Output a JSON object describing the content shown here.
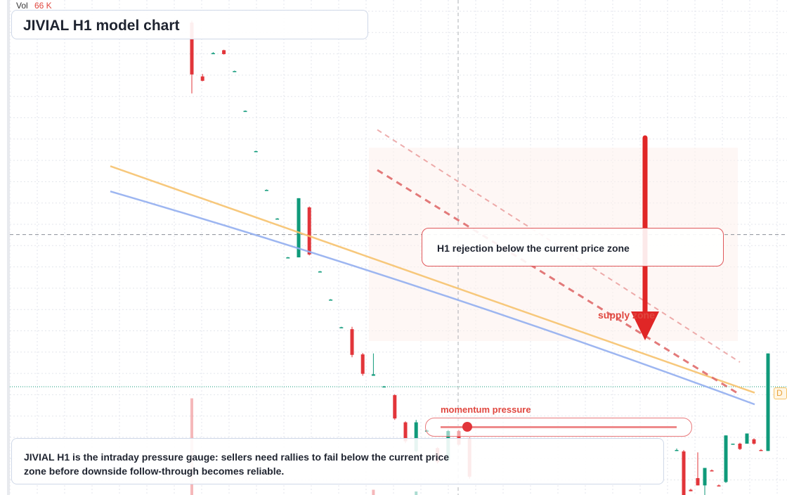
{
  "title": "JIVIAL H1 model chart",
  "volume": {
    "label": "Vol",
    "value": "66 K"
  },
  "callout": {
    "text": "H1 rejection below the current price zone"
  },
  "supply_zone": {
    "label": "supply zone"
  },
  "momentum": {
    "label": "momentum pressure",
    "level": 0.07
  },
  "note": {
    "text": "JIVIAL H1 is the intraday pressure gauge: sellers need rallies to fail below the current price zone before downside follow-through becomes reliable."
  },
  "badge": {
    "text": "D"
  },
  "colors": {
    "bullish": "#0f9a7a",
    "bearish": "#e2353a",
    "ma_fast": "#f6c26e",
    "ma_slow": "#92aef0",
    "trend_dashed": "#e06c6c",
    "arrow": "#e02626",
    "grid": "#e3e6ec"
  },
  "chart_data": {
    "type": "candlestick",
    "title": "JIVIAL H1 model chart",
    "y_range": [
      0,
      100
    ],
    "candles": [
      {
        "x": 0,
        "o": 96.8,
        "h": 97.2,
        "l": 82.2,
        "c": 86.1
      },
      {
        "x": 1,
        "o": 85.7,
        "h": 86.2,
        "l": 84.7,
        "c": 84.8
      },
      {
        "x": 2,
        "o": 90.5,
        "h": 90.7,
        "l": 90.4,
        "c": 90.5
      },
      {
        "x": 3,
        "o": 91.1,
        "h": 91.2,
        "l": 90.2,
        "c": 90.3
      },
      {
        "x": 4,
        "o": 86.8,
        "h": 86.9,
        "l": 86.8,
        "c": 86.8
      },
      {
        "x": 5,
        "o": 78.6,
        "h": 78.7,
        "l": 78.6,
        "c": 78.6
      },
      {
        "x": 6,
        "o": 70.3,
        "h": 70.4,
        "l": 70.3,
        "c": 70.3
      },
      {
        "x": 7,
        "o": 62.3,
        "h": 62.4,
        "l": 62.3,
        "c": 62.3
      },
      {
        "x": 8,
        "o": 56.4,
        "h": 56.5,
        "l": 56.4,
        "c": 56.4
      },
      {
        "x": 9,
        "o": 48.4,
        "h": 48.5,
        "l": 48.4,
        "c": 48.4
      },
      {
        "x": 10,
        "o": 48.4,
        "h": 60.6,
        "l": 48.4,
        "c": 60.6
      },
      {
        "x": 11,
        "o": 58.7,
        "h": 58.9,
        "l": 48.8,
        "c": 49.0
      },
      {
        "x": 12,
        "o": 45.5,
        "h": 45.6,
        "l": 45.5,
        "c": 45.5
      },
      {
        "x": 13,
        "o": 39.7,
        "h": 39.8,
        "l": 39.7,
        "c": 39.7
      },
      {
        "x": 14,
        "o": 34.0,
        "h": 34.1,
        "l": 34.0,
        "c": 34.0
      },
      {
        "x": 15,
        "o": 33.6,
        "h": 34.1,
        "l": 27.8,
        "c": 28.3
      },
      {
        "x": 16,
        "o": 28.4,
        "h": 28.7,
        "l": 24.0,
        "c": 24.4
      },
      {
        "x": 17,
        "o": 24.0,
        "h": 28.6,
        "l": 24.0,
        "c": 24.3
      },
      {
        "x": 18,
        "o": 21.8,
        "h": 21.9,
        "l": 21.8,
        "c": 21.8
      },
      {
        "x": 19,
        "o": 20.0,
        "h": 20.2,
        "l": 14.9,
        "c": 15.2
      },
      {
        "x": 20,
        "o": 14.4,
        "h": 14.6,
        "l": 10.1,
        "c": 10.5
      },
      {
        "x": 21,
        "o": 8.5,
        "h": 14.9,
        "l": 8.2,
        "c": 14.4
      },
      {
        "x": 22,
        "o": 12.7,
        "h": 12.9,
        "l": 12.7,
        "c": 12.7
      },
      {
        "x": 23,
        "o": 9.1,
        "h": 9.3,
        "l": 5.9,
        "c": 6.2
      },
      {
        "x": 24,
        "o": 6.6,
        "h": 12.8,
        "l": 6.2,
        "c": 12.6
      },
      {
        "x": 25,
        "o": 12.6,
        "h": 12.9,
        "l": 9.6,
        "c": 9.8
      },
      {
        "x": 26,
        "o": 11.1,
        "h": 11.3,
        "l": 2.8,
        "c": 3.2
      }
    ],
    "candles_right": [
      {
        "x": 0,
        "o": -1.3,
        "h": -1.0,
        "l": -1.3,
        "c": -1.3
      },
      {
        "x": 1,
        "o": -1.6,
        "h": -1.3,
        "l": -11.9,
        "c": -11.9
      },
      {
        "x": 2,
        "o": -9.5,
        "h": -9.3,
        "l": -9.8,
        "c": -9.8
      },
      {
        "x": 3,
        "o": -7.1,
        "h": -1.8,
        "l": -8.6,
        "c": -8.6
      },
      {
        "x": 4,
        "o": -8.6,
        "h": -5.0,
        "l": -12.1,
        "c": -5.0
      },
      {
        "x": 5,
        "o": -5.5,
        "h": -5.3,
        "l": -5.6,
        "c": -5.6
      },
      {
        "x": 6,
        "o": -8.6,
        "h": -8.4,
        "l": -8.7,
        "c": -8.7
      },
      {
        "x": 7,
        "o": -7.9,
        "h": 1.7,
        "l": -8.1,
        "c": 1.7
      },
      {
        "x": 8,
        "o": 0.0,
        "h": 0.0,
        "l": 0.0,
        "c": 0.0
      },
      {
        "x": 9,
        "o": 0.0,
        "h": 0.2,
        "l": -1.3,
        "c": -1.1
      },
      {
        "x": 10,
        "o": 0.0,
        "h": 2.1,
        "l": 0.0,
        "c": 2.1
      },
      {
        "x": 11,
        "o": 0.9,
        "h": 1.1,
        "l": -0.2,
        "c": 0.0
      },
      {
        "x": 12,
        "o": -1.3,
        "h": -1.1,
        "l": -1.4,
        "c": -1.4
      },
      {
        "x": 13,
        "o": -1.5,
        "h": 18.6,
        "l": -1.5,
        "c": 18.6
      }
    ],
    "volume_bars": [
      {
        "x": 0,
        "v": 0.55,
        "dir": "down"
      },
      {
        "x": 17,
        "v": 0.03,
        "dir": "down"
      },
      {
        "x": 21,
        "v": 0.02,
        "dir": "up"
      }
    ],
    "moving_averages": [
      {
        "name": "",
        "color": "#f6c26e",
        "points": [
          [
            0,
            67.2
          ],
          [
            1,
            20.5
          ]
        ]
      },
      {
        "name": "",
        "color": "#92aef0",
        "points": [
          [
            0,
            62.0
          ],
          [
            1,
            18.1
          ]
        ]
      }
    ],
    "current_price_line": 53.1,
    "trend_lines": [
      {
        "style": "dashed",
        "points": [
          [
            0,
            66.4
          ],
          [
            1,
            20.1
          ]
        ]
      },
      {
        "style": "dashed-light",
        "points": [
          [
            0,
            74.7
          ],
          [
            1,
            26.8
          ]
        ]
      }
    ]
  }
}
